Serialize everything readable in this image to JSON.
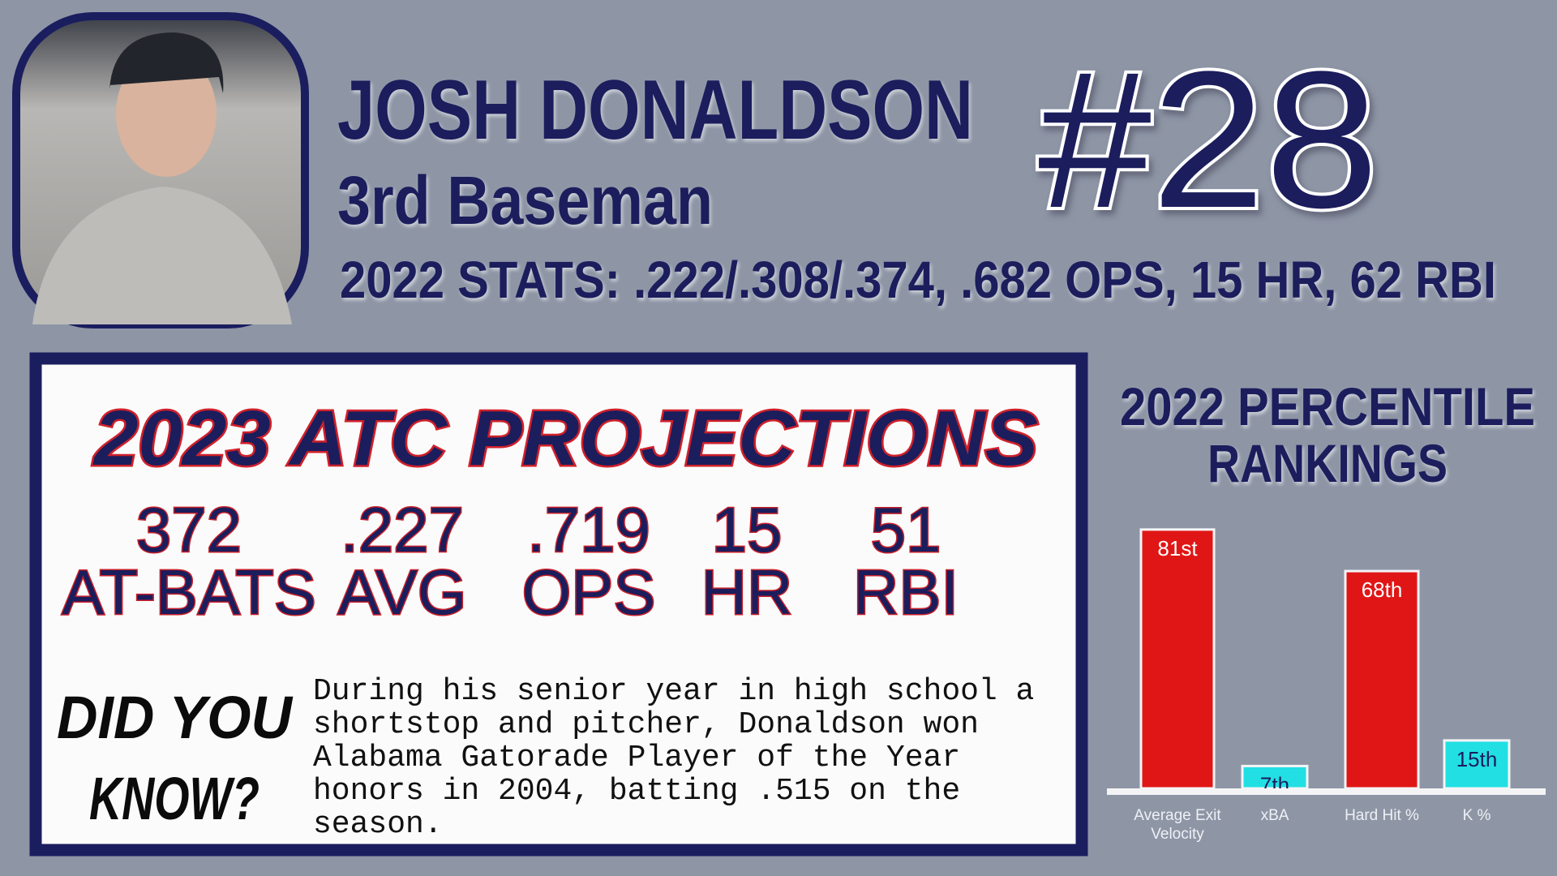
{
  "header": {
    "name": "JOSH DONALDSON",
    "position": "3rd Baseman",
    "number": "#28",
    "stats": "2022 STATS: .222/.308/.374, .682 OPS, 15 HR, 62 RBI"
  },
  "projections": {
    "title": "2023 ATC PROJECTIONS",
    "items": [
      {
        "value": "372",
        "label": "AT-BATS"
      },
      {
        "value": ".227",
        "label": "AVG"
      },
      {
        "value": ".719",
        "label": "OPS"
      },
      {
        "value": "15",
        "label": "HR"
      },
      {
        "value": "51",
        "label": "RBI"
      }
    ]
  },
  "did_you_know": {
    "title_lines": [
      "DID YOU",
      "KNOW?"
    ],
    "text": "During his senior year in high school a shortstop and pitcher, Donaldson won Alabama Gatorade Player of the Year honors in 2004, batting .515 on the season."
  },
  "chart_data": {
    "type": "bar",
    "title_lines": [
      "2022 PERCENTILE",
      "RANKINGS"
    ],
    "categories": [
      "Average Exit Velocity",
      "xBA",
      "Hard Hit %",
      "K %"
    ],
    "values": [
      81,
      7,
      68,
      15
    ],
    "value_labels": [
      "81st",
      "7th",
      "68th",
      "15th"
    ],
    "colors": [
      "#e01616",
      "#22dfe3",
      "#e01616",
      "#22dfe3"
    ]
  }
}
